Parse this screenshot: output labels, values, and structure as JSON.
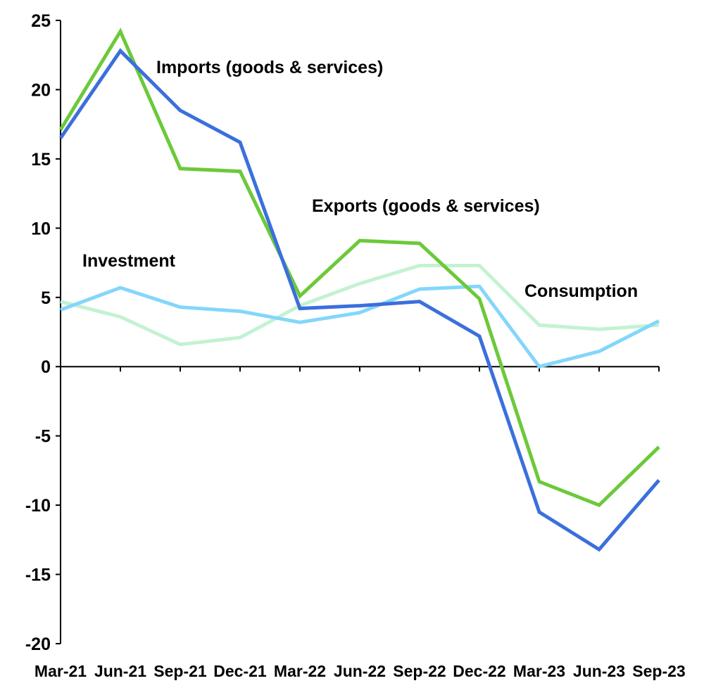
{
  "chart_data": {
    "type": "line",
    "title": "",
    "xlabel": "",
    "ylabel": "",
    "categories": [
      "Mar-21",
      "Jun-21",
      "Sep-21",
      "Dec-21",
      "Mar-22",
      "Jun-22",
      "Sep-22",
      "Dec-22",
      "Mar-23",
      "Jun-23",
      "Sep-23"
    ],
    "ylim": [
      -20,
      25
    ],
    "yticks": [
      25,
      20,
      15,
      10,
      5,
      0,
      -5,
      -10,
      -15,
      -20
    ],
    "grid": false,
    "legend": "none (inline labels)",
    "series": [
      {
        "name": "Consumption",
        "color": "#c3f2d2",
        "values": [
          4.7,
          3.6,
          1.6,
          2.1,
          4.4,
          6.0,
          7.3,
          7.3,
          3.0,
          2.7,
          3.0
        ]
      },
      {
        "name": "Investment",
        "color": "#84d6fa",
        "values": [
          4.1,
          5.7,
          4.3,
          4.0,
          3.2,
          3.9,
          5.6,
          5.8,
          0.0,
          1.1,
          3.3
        ]
      },
      {
        "name": "Exports (goods & services)",
        "color": "#6cc93a",
        "values": [
          17.1,
          24.2,
          14.3,
          14.1,
          5.1,
          9.1,
          8.9,
          4.9,
          -8.3,
          -10.0,
          -5.8
        ]
      },
      {
        "name": "Imports (goods & services)",
        "color": "#3b6fdc",
        "values": [
          16.5,
          22.8,
          18.5,
          16.2,
          4.2,
          4.4,
          4.7,
          2.2,
          -10.5,
          -13.2,
          -8.2
        ]
      }
    ],
    "annotations": [
      "Imports (goods & services)",
      "Exports (goods & services)",
      "Investment",
      "Consumption"
    ]
  }
}
